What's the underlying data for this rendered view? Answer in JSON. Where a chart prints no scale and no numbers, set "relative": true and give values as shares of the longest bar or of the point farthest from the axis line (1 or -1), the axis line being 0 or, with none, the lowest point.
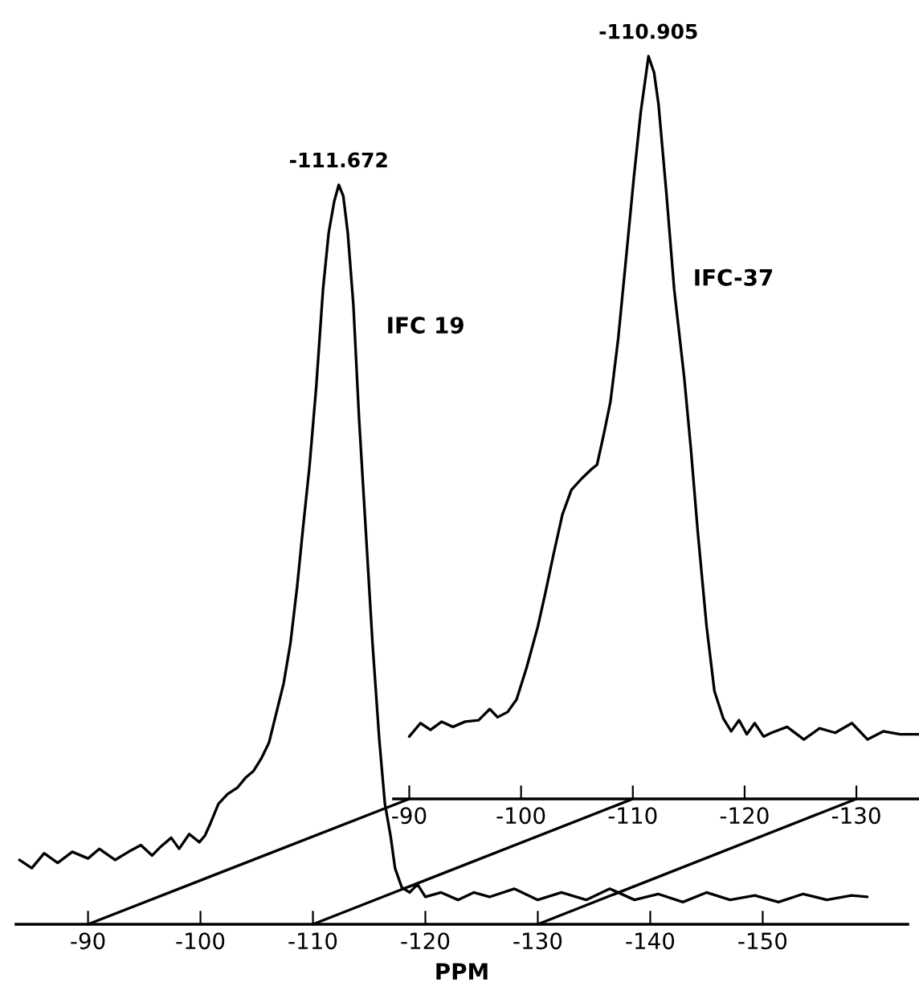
{
  "chart_data": [
    {
      "type": "line",
      "relative": true,
      "xlabel": "PPM",
      "tick_labels": "x",
      "grid": false,
      "legend": false,
      "xlim": [
        -83.6,
        -162.9
      ],
      "xticks": [
        -90,
        -100,
        -110,
        -120,
        -130,
        -140,
        -150
      ],
      "annotations": [
        {
          "text": "-111.672",
          "x": -112.3,
          "y": 1
        }
      ],
      "series": [
        {
          "name": "IFC 19",
          "color": "#000000",
          "x": [
            -83.9,
            -85.0,
            -86.1,
            -87.3,
            -88.6,
            -90.0,
            -91.0,
            -92.4,
            -93.6,
            -94.7,
            -95.7,
            -96.4,
            -97.4,
            -98.1,
            -99.0,
            -99.9,
            -100.4,
            -100.9,
            -101.6,
            -102.4,
            -103.3,
            -104.0,
            -104.7,
            -105.4,
            -106.1,
            -106.7,
            -107.4,
            -108.0,
            -108.6,
            -109.1,
            -109.7,
            -110.3,
            -110.9,
            -111.4,
            -111.9,
            -112.3,
            -112.7,
            -113.1,
            -113.6,
            -114.1,
            -114.7,
            -115.3,
            -115.9,
            -116.4,
            -116.9,
            -117.3,
            -117.9,
            -118.6,
            -119.3,
            -120.0,
            -121.4,
            -122.9,
            -124.3,
            -125.7,
            -127.9,
            -130.0,
            -132.1,
            -134.3,
            -136.4,
            -138.6,
            -140.7,
            -142.9,
            -145.0,
            -147.1,
            -149.3,
            -151.4,
            -153.6,
            -155.7,
            -157.9,
            -159.3
          ],
          "values": [
            0.087,
            0.076,
            0.096,
            0.083,
            0.098,
            0.089,
            0.102,
            0.087,
            0.098,
            0.107,
            0.093,
            0.104,
            0.117,
            0.102,
            0.122,
            0.111,
            0.12,
            0.137,
            0.163,
            0.176,
            0.185,
            0.198,
            0.207,
            0.224,
            0.246,
            0.283,
            0.326,
            0.38,
            0.457,
            0.533,
            0.62,
            0.728,
            0.859,
            0.935,
            0.978,
            1,
            0.985,
            0.935,
            0.837,
            0.685,
            0.533,
            0.38,
            0.25,
            0.163,
            0.12,
            0.076,
            0.05,
            0.043,
            0.054,
            0.037,
            0.043,
            0.033,
            0.043,
            0.037,
            0.048,
            0.033,
            0.043,
            0.033,
            0.048,
            0.033,
            0.041,
            0.03,
            0.043,
            0.033,
            0.039,
            0.03,
            0.041,
            0.033,
            0.039,
            0.037
          ]
        }
      ]
    },
    {
      "type": "line",
      "relative": true,
      "tick_labels": "x",
      "grid": false,
      "legend": false,
      "xlim": [
        -88.6,
        -135.6
      ],
      "xticks": [
        -90,
        -100,
        -110,
        -120,
        -130
      ],
      "annotations": [
        {
          "text": "-110.905",
          "x": -111.4,
          "y": 1
        }
      ],
      "series": [
        {
          "name": "IFC-37",
          "color": "#000000",
          "x": [
            -90.0,
            -91.0,
            -91.9,
            -92.9,
            -93.9,
            -95.0,
            -96.2,
            -97.2,
            -97.9,
            -98.8,
            -99.6,
            -100.5,
            -101.5,
            -102.2,
            -102.9,
            -103.7,
            -104.5,
            -105.4,
            -106.3,
            -106.8,
            -107.4,
            -108.0,
            -108.7,
            -109.4,
            -110.1,
            -110.7,
            -111.2,
            -111.4,
            -111.9,
            -112.3,
            -113.0,
            -113.7,
            -114.6,
            -115.2,
            -115.8,
            -116.6,
            -117.3,
            -118.1,
            -118.8,
            -119.5,
            -120.2,
            -120.9,
            -121.7,
            -122.4,
            -123.8,
            -125.3,
            -126.7,
            -128.1,
            -129.6,
            -131.0,
            -132.4,
            -133.9,
            -135.6
          ],
          "values": [
            0.084,
            0.102,
            0.093,
            0.104,
            0.097,
            0.104,
            0.106,
            0.121,
            0.11,
            0.117,
            0.134,
            0.177,
            0.232,
            0.279,
            0.329,
            0.383,
            0.416,
            0.431,
            0.444,
            0.45,
            0.491,
            0.535,
            0.621,
            0.729,
            0.838,
            0.924,
            0.978,
            1,
            0.978,
            0.935,
            0.816,
            0.686,
            0.567,
            0.47,
            0.361,
            0.232,
            0.145,
            0.108,
            0.091,
            0.106,
            0.087,
            0.102,
            0.084,
            0.089,
            0.097,
            0.08,
            0.095,
            0.089,
            0.102,
            0.08,
            0.091,
            0.087,
            0.087
          ]
        }
      ]
    }
  ]
}
